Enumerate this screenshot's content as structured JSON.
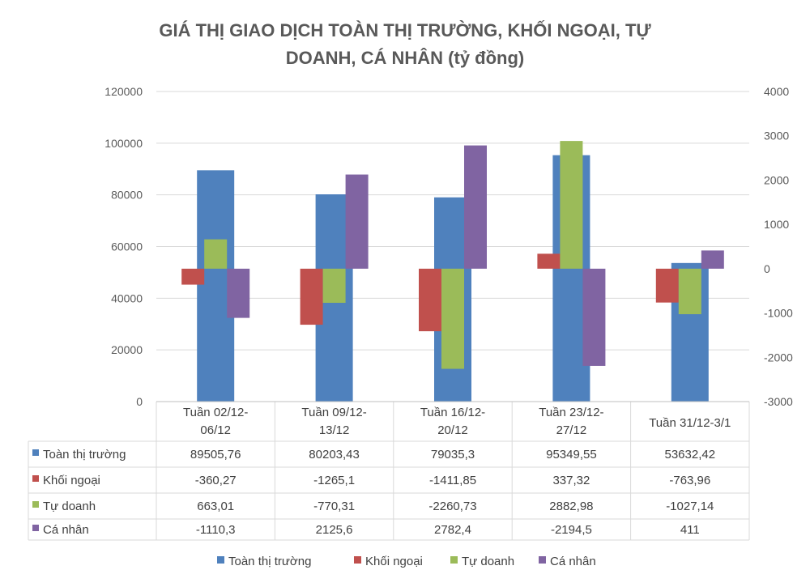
{
  "chart_data": {
    "type": "bar",
    "title_lines": [
      "GIÁ THỊ GIAO DỊCH TOÀN THỊ TRƯỜNG, KHỐI NGOẠI, TỰ",
      "DOANH, CÁ NHÂN (tỷ đồng)"
    ],
    "categories": [
      [
        "Tuần 02/12-",
        "06/12"
      ],
      [
        "Tuần 09/12-",
        "13/12"
      ],
      [
        "Tuần 16/12-",
        "20/12"
      ],
      [
        "Tuần 23/12-",
        "27/12"
      ],
      [
        "Tuần 31/12-3/1"
      ]
    ],
    "primary_axis": {
      "ylim": [
        0,
        120000
      ],
      "ticks": [
        0,
        20000,
        40000,
        60000,
        80000,
        100000,
        120000
      ]
    },
    "secondary_axis": {
      "ylim": [
        -3000,
        4000
      ],
      "ticks": [
        -3000,
        -2000,
        -1000,
        0,
        1000,
        2000,
        3000,
        4000
      ]
    },
    "series": [
      {
        "name": "Toàn thị trường",
        "axis": "primary",
        "color": "#4f81bd",
        "values": [
          89505.76,
          80203.43,
          79035.3,
          95349.55,
          53632.42
        ],
        "labels": [
          "89505,76",
          "80203,43",
          "79035,3",
          "95349,55",
          "53632,42"
        ]
      },
      {
        "name": "Khối ngoại",
        "axis": "secondary",
        "color": "#c0504d",
        "values": [
          -360.27,
          -1265.1,
          -1411.85,
          337.32,
          -763.96
        ],
        "labels": [
          "-360,27",
          "-1265,1",
          "-1411,85",
          "337,32",
          "-763,96"
        ]
      },
      {
        "name": "Tự doanh",
        "axis": "secondary",
        "color": "#9bbb59",
        "values": [
          663.01,
          -770.31,
          -2260.73,
          2882.98,
          -1027.14
        ],
        "labels": [
          "663,01",
          "-770,31",
          "-2260,73",
          "2882,98",
          "-1027,14"
        ]
      },
      {
        "name": "Cá nhân",
        "axis": "secondary",
        "color": "#8064a2",
        "values": [
          -1110.3,
          2125.6,
          2782.4,
          -2194.5,
          411
        ],
        "labels": [
          "-1110,3",
          "2125,6",
          "2782,4",
          "-2194,5",
          "411"
        ]
      }
    ],
    "legend_position": "bottom",
    "data_table": true,
    "grid": true
  }
}
